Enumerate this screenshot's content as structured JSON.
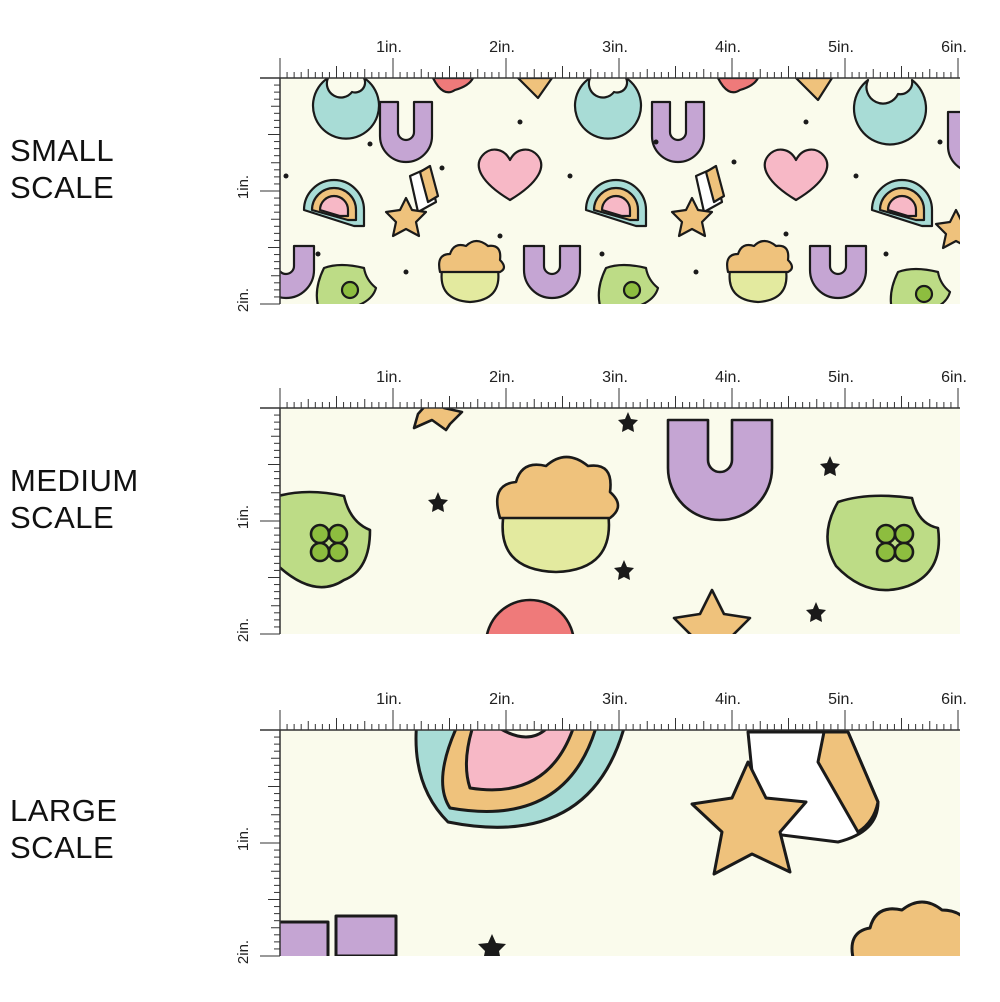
{
  "colors": {
    "fabric_background": "#fafbec",
    "outline": "#1a1a1a",
    "mint": "#a8dcd6",
    "lavender": "#c5a5d3",
    "pink": "#f7b8c6",
    "peach": "#efc27c",
    "lime": "#bddc86",
    "green": "#8dbd3f",
    "coral": "#ef7a7a",
    "pale_yellow": "#e3ea9f"
  },
  "ruler": {
    "top_labels": [
      "1in.",
      "2in.",
      "3in.",
      "4in.",
      "5in.",
      "6in."
    ],
    "side_labels": [
      "1in.",
      "2in."
    ]
  },
  "panels": [
    {
      "id": "small",
      "label_lines": [
        "SMALL",
        "SCALE"
      ],
      "motif_scale": "small"
    },
    {
      "id": "medium",
      "label_lines": [
        "MEDIUM",
        "SCALE"
      ],
      "motif_scale": "medium"
    },
    {
      "id": "large",
      "label_lines": [
        "LARGE",
        "SCALE"
      ],
      "motif_scale": "large"
    }
  ],
  "icons": [
    "moon-icon",
    "horseshoe-icon",
    "heart-icon",
    "rainbow-icon",
    "shooting-star-icon",
    "pot-of-gold-icon",
    "clover-hat-icon",
    "star-icon",
    "balloon-icon"
  ]
}
